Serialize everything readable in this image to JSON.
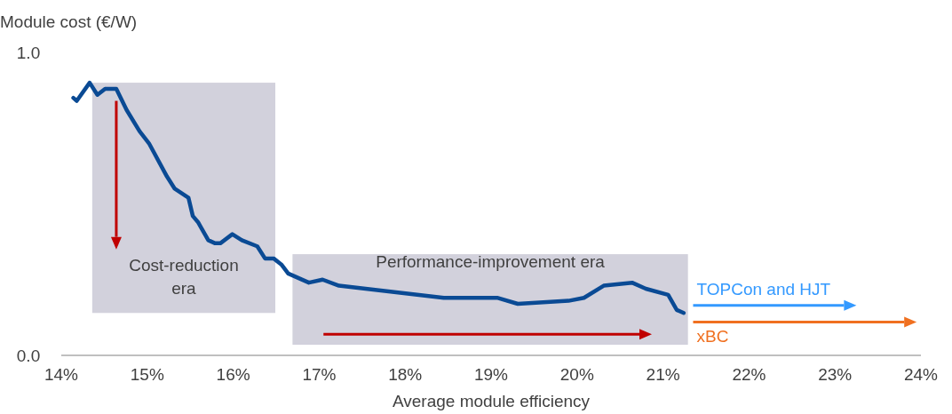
{
  "chart_data": {
    "type": "line",
    "ylabel": "Module cost (€/W)",
    "xlabel": "Average module efficiency",
    "xlim": [
      14,
      24
    ],
    "xticks": [
      {
        "value": 14,
        "label": "14%"
      },
      {
        "value": 15,
        "label": "15%"
      },
      {
        "value": 16,
        "label": "16%"
      },
      {
        "value": 17,
        "label": "17%"
      },
      {
        "value": 18,
        "label": "18%"
      },
      {
        "value": 19,
        "label": "19%"
      },
      {
        "value": 20,
        "label": "20%"
      },
      {
        "value": 21,
        "label": "21%"
      },
      {
        "value": 22,
        "label": "22%"
      },
      {
        "value": 23,
        "label": "23%"
      },
      {
        "value": 24,
        "label": "24%"
      }
    ],
    "ylim": [
      0,
      1
    ],
    "yticks": [
      {
        "value": 0,
        "label": "0.0"
      },
      {
        "value": 1,
        "label": "1.0"
      }
    ],
    "grid": false,
    "marker": "none",
    "line_style": "solid",
    "series": [
      {
        "color": "#0a4a94",
        "x": [
          14.14,
          14.18,
          14.33,
          14.42,
          14.51,
          14.64,
          14.76,
          14.91,
          15.02,
          15.23,
          15.32,
          15.48,
          15.53,
          15.59,
          15.71,
          15.79,
          15.85,
          15.99,
          16.1,
          16.28,
          16.37,
          16.47,
          16.56,
          16.64,
          16.88,
          17.04,
          17.23,
          18.45,
          19.07,
          19.31,
          19.9,
          20.08,
          20.31,
          20.64,
          20.8,
          21.06,
          21.16,
          21.24
        ],
        "values": [
          0.85,
          0.84,
          0.9,
          0.86,
          0.88,
          0.88,
          0.81,
          0.74,
          0.7,
          0.59,
          0.55,
          0.52,
          0.46,
          0.44,
          0.38,
          0.37,
          0.37,
          0.4,
          0.38,
          0.36,
          0.32,
          0.32,
          0.3,
          0.27,
          0.24,
          0.25,
          0.23,
          0.19,
          0.19,
          0.17,
          0.18,
          0.19,
          0.23,
          0.24,
          0.22,
          0.2,
          0.15,
          0.14
        ]
      }
    ],
    "bands": [
      {
        "axis": "x",
        "from": 14.36,
        "to": 16.49,
        "label": "Cost-reduction\nera",
        "color": "#d2d1dc"
      },
      {
        "axis": "x",
        "from": 16.69,
        "to": 21.29,
        "label": "Performance-improvement era",
        "color": "#d2d1dc"
      }
    ],
    "annotations": [
      "TOPCon and HJT",
      "xBC"
    ]
  }
}
